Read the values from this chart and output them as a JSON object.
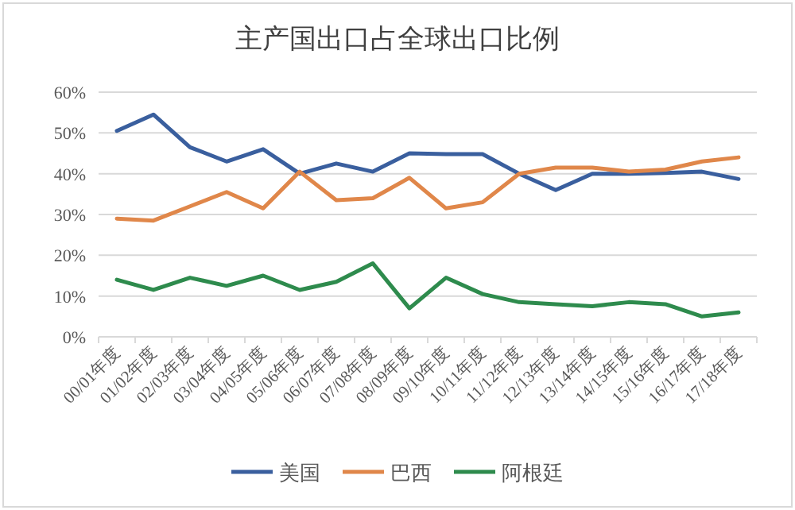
{
  "chart_data": {
    "type": "line",
    "title": "主产国出口占全球出口比例",
    "categories": [
      "00/01年度",
      "01/02年度",
      "02/03年度",
      "03/04年度",
      "04/05年度",
      "05/06年度",
      "06/07年度",
      "07/08年度",
      "08/09年度",
      "09/10年度",
      "10/11年度",
      "11/12年度",
      "12/13年度",
      "13/14年度",
      "14/15年度",
      "15/16年度",
      "16/17年度",
      "17/18年度"
    ],
    "series": [
      {
        "name": "美国",
        "color": "#3a5f9e",
        "values": [
          50.5,
          54.5,
          46.5,
          43,
          46,
          40,
          42.5,
          40.5,
          45,
          44.8,
          44.8,
          40,
          36,
          40,
          40,
          40.2,
          40.5,
          38.7
        ]
      },
      {
        "name": "巴西",
        "color": "#e0874a",
        "values": [
          29,
          28.5,
          32,
          35.5,
          31.5,
          40.5,
          33.5,
          34,
          39,
          31.5,
          33,
          40,
          41.5,
          41.5,
          40.5,
          41,
          43,
          44
        ]
      },
      {
        "name": "阿根廷",
        "color": "#2e8b4d",
        "values": [
          14,
          11.5,
          14.5,
          12.5,
          15,
          11.5,
          13.5,
          18,
          7,
          14.5,
          10.5,
          8.5,
          8,
          7.5,
          8.5,
          8,
          5,
          6
        ]
      }
    ],
    "ylim": [
      0,
      60
    ],
    "yticks": [
      {
        "value": 0,
        "label": "0%"
      },
      {
        "value": 10,
        "label": "10%"
      },
      {
        "value": 20,
        "label": "20%"
      },
      {
        "value": 30,
        "label": "30%"
      },
      {
        "value": 40,
        "label": "40%"
      },
      {
        "value": 50,
        "label": "50%"
      },
      {
        "value": 60,
        "label": "60%"
      }
    ],
    "grid": "y",
    "legend": "bottom",
    "marker": "none",
    "line_style": "solid"
  }
}
